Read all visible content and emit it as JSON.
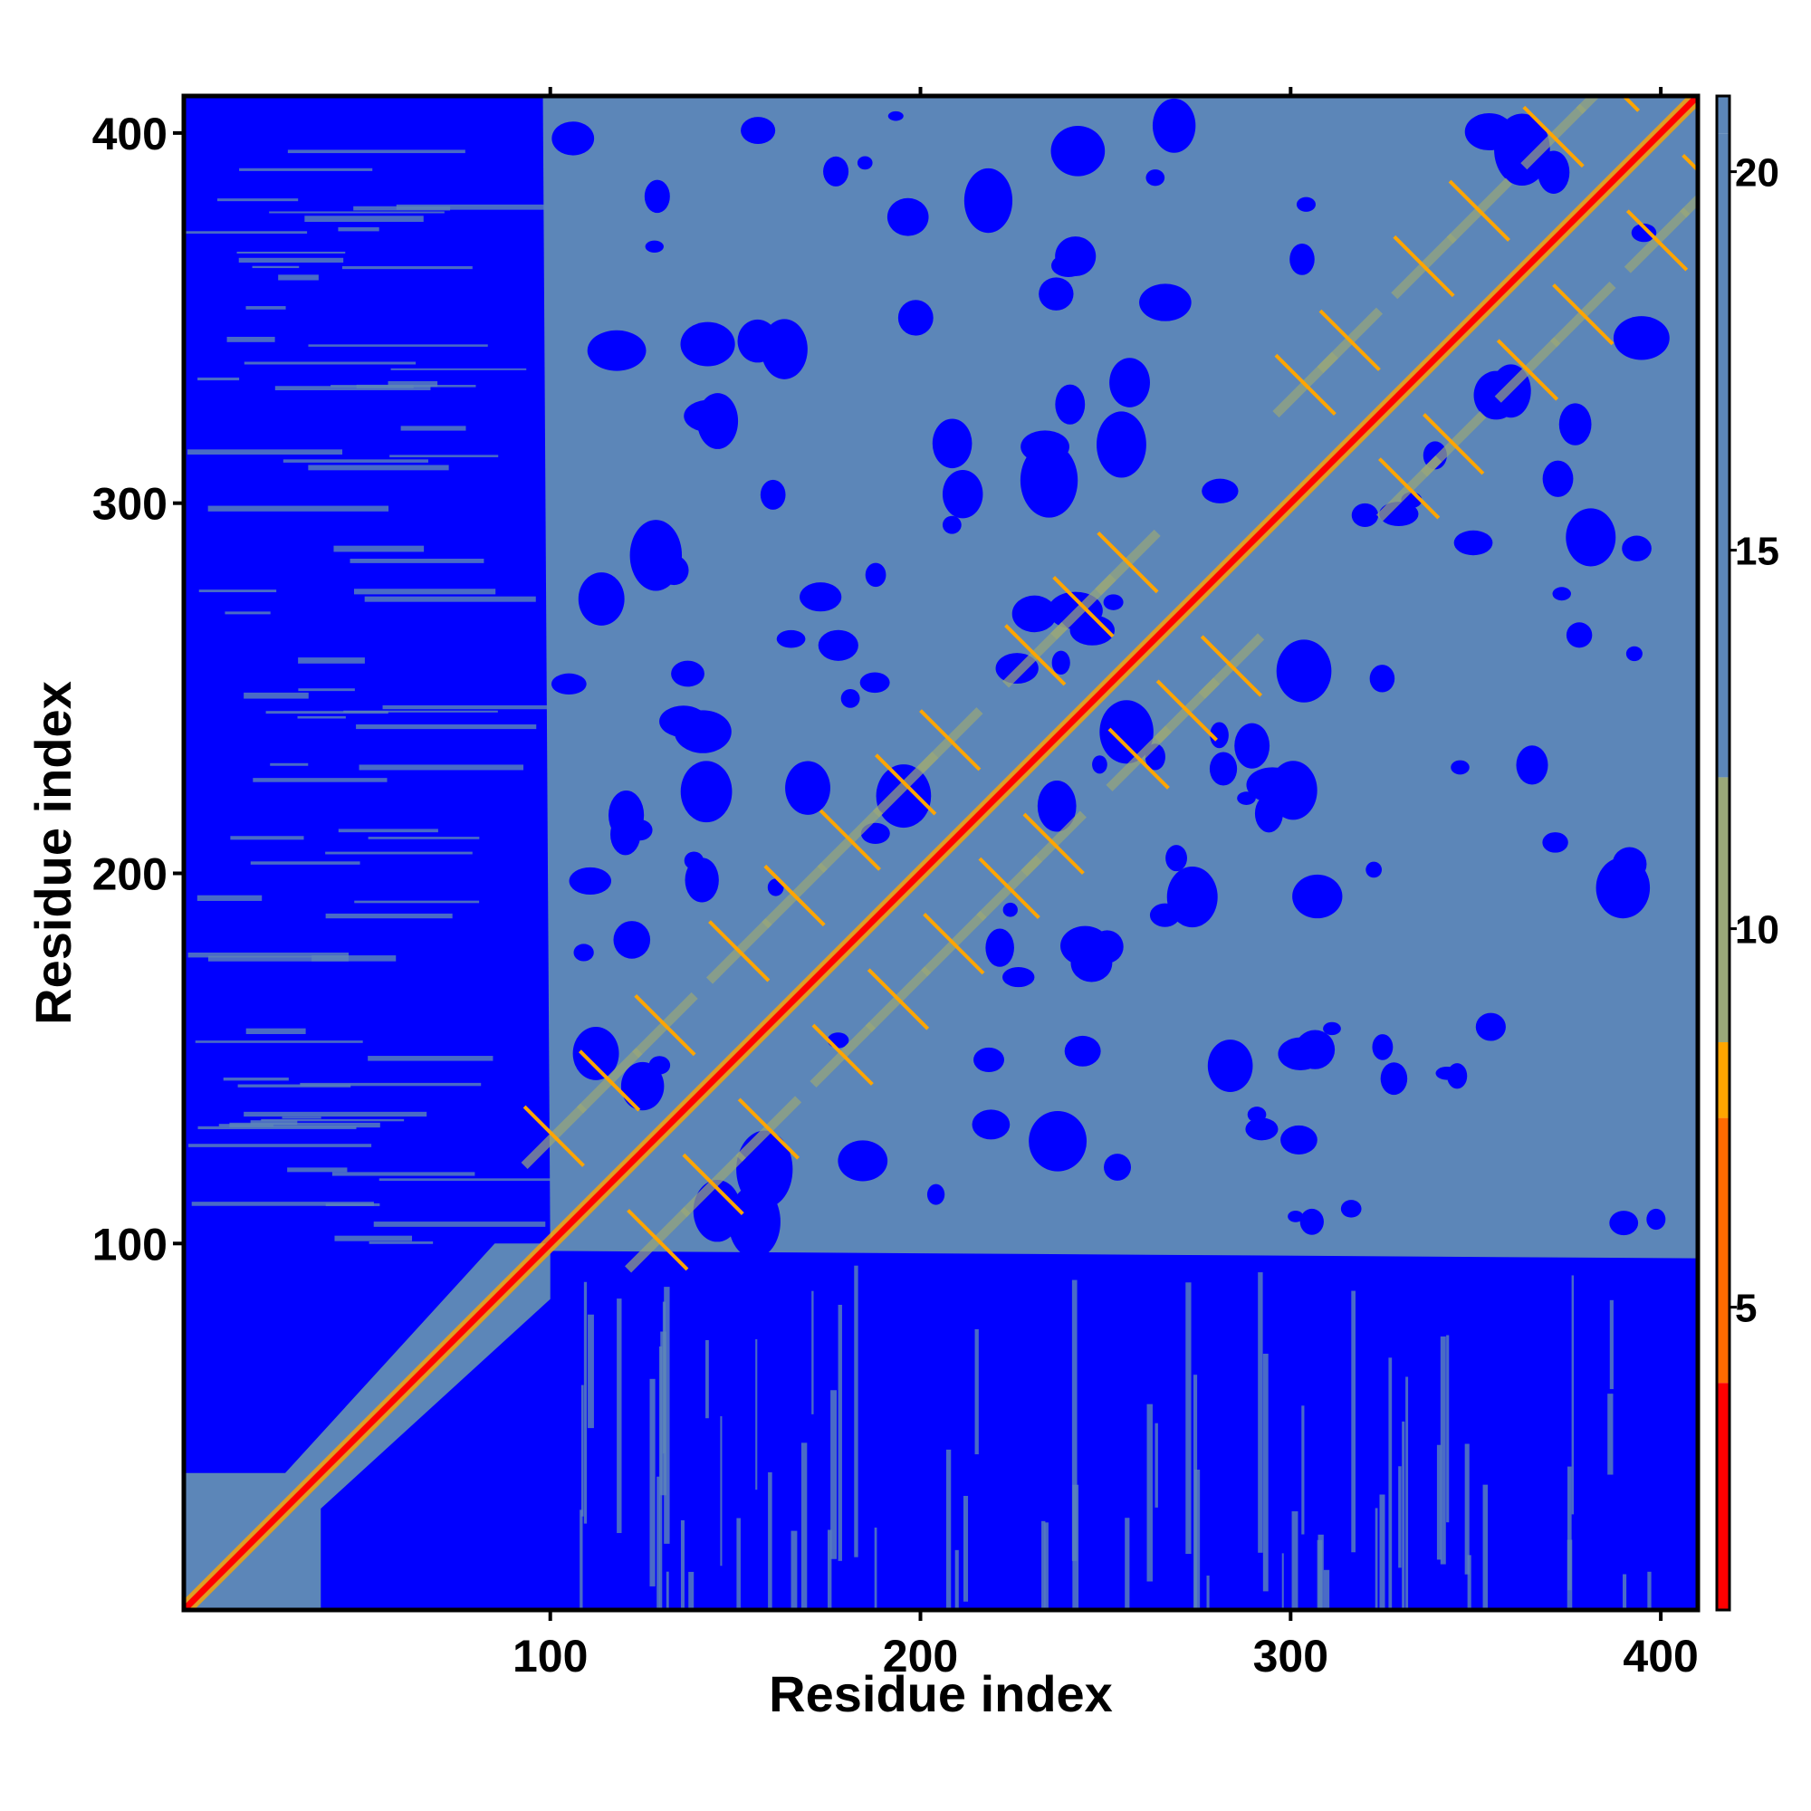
{
  "chart_data": {
    "type": "heatmap",
    "title": "",
    "xlabel": "Residue index",
    "ylabel": "Residue index",
    "xlim": [
      1,
      410
    ],
    "ylim": [
      1,
      410
    ],
    "x_ticks": [
      100,
      200,
      300,
      400
    ],
    "y_ticks": [
      100,
      200,
      300,
      400
    ],
    "colorbar": {
      "range": [
        1,
        21
      ],
      "ticks": [
        5,
        10,
        15,
        20
      ],
      "colors": [
        "#ff0000",
        "#ff6a00",
        "#ffa500",
        "#9aa879",
        "#5c86b8",
        "#0000ff"
      ]
    },
    "description_regions": {
      "diagonal_value": 1,
      "far_value": 21,
      "intermediate_value": 18,
      "contact_value": 7
    }
  }
}
